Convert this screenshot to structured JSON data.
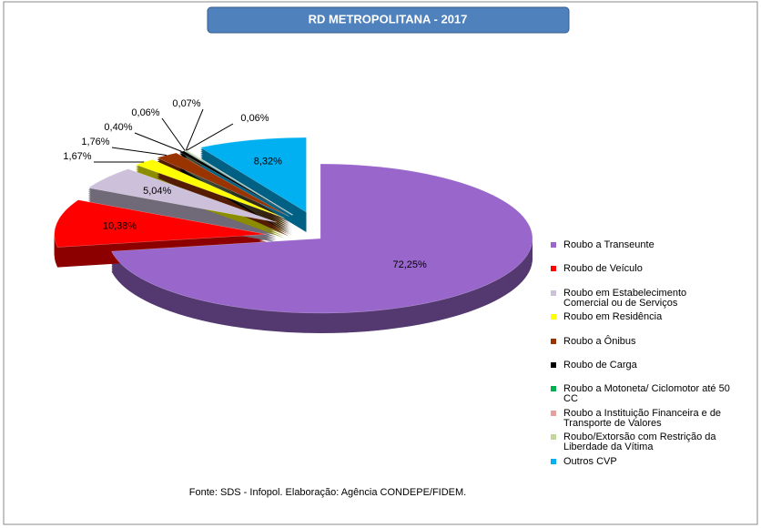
{
  "chart_data": {
    "type": "pie",
    "title": "RD METROPOLITANA - 2017",
    "source": "Fonte: SDS - Infopol.  Elaboração: Agência CONDEPE/FIDEM.",
    "categories": [
      "Roubo a Transeunte",
      "Roubo de Veículo",
      "Roubo em Estabelecimento Comercial ou de Serviços",
      "Roubo em Residência",
      "Roubo a Ônibus",
      "Roubo de Carga",
      "Roubo a Motoneta/ Ciclomotor até 50 CC",
      "Roubo a Instituição Financeira e de Transporte de Valores",
      "Roubo/Extorsão com Restrição da Liberdade da Vítima",
      "Outros CVP"
    ],
    "values": [
      72.25,
      10.38,
      5.04,
      1.67,
      1.76,
      0.4,
      0.06,
      0.07,
      0.06,
      8.32
    ],
    "value_labels": [
      "72,25%",
      "10,38%",
      "5,04%",
      "1,67%",
      "1,76%",
      "0,40%",
      "0,06%",
      "0,07%",
      "0,06%",
      "8,32%"
    ],
    "colors": [
      "#9966cc",
      "#ff0000",
      "#ccc0da",
      "#ffff00",
      "#993300",
      "#000000",
      "#00b050",
      "#e6a0a0",
      "#c3d69b",
      "#00b0f0"
    ],
    "legend": "right"
  }
}
